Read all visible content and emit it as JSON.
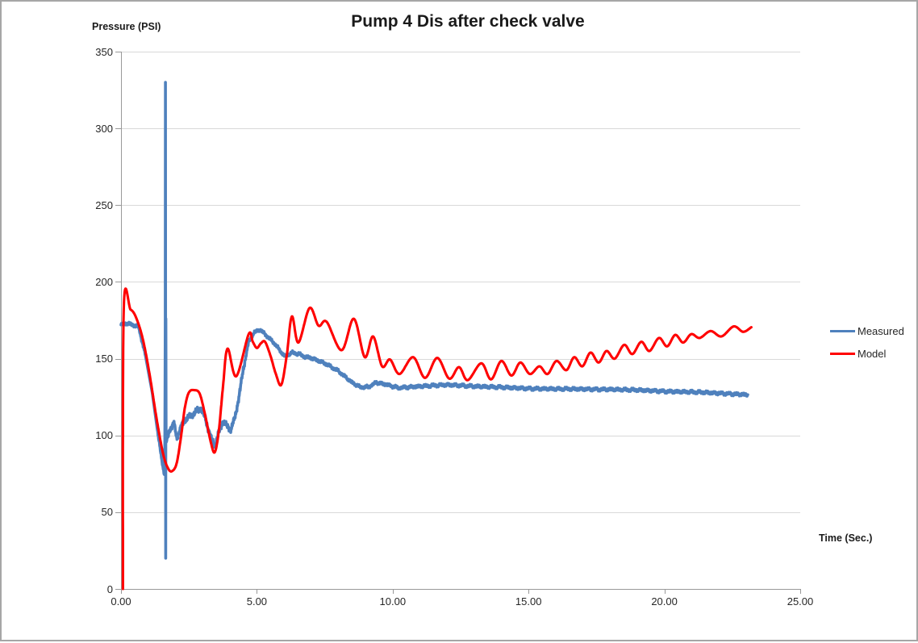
{
  "window": {
    "background": "#FFFFFF",
    "border_color": "#A6A6A6"
  },
  "colors": {
    "measured_series": "#4F81BD",
    "model_series": "#FF0000",
    "gridline": "#D9D9D9",
    "axis_line": "#999999",
    "tick_text": "#262626",
    "title_text": "#1A1A1A"
  },
  "chart_data": {
    "type": "line",
    "title": "Pump 4 Dis after check valve",
    "grid": "horizontal",
    "x_axis": {
      "title": "Time (Sec.)",
      "min": 0,
      "max": 25,
      "tick_interval": 5,
      "tick_labels": [
        "0.00",
        "5.00",
        "10.00",
        "15.00",
        "20.00",
        "25.00"
      ]
    },
    "y_axis": {
      "title": "Pressure (PSI)",
      "min": 0,
      "max": 350,
      "tick_interval": 50,
      "tick_labels": [
        "0",
        "50",
        "100",
        "150",
        "200",
        "250",
        "300",
        "350"
      ]
    },
    "legend": {
      "position": "right",
      "entries": [
        {
          "label": "Measured",
          "color": "#4F81BD"
        },
        {
          "label": "Model",
          "color": "#FF0000"
        }
      ]
    },
    "series": [
      {
        "name": "Measured",
        "color": "#4F81BD",
        "style": "noisy",
        "points": [
          [
            0,
            172
          ],
          [
            0.2,
            173
          ],
          [
            0.45,
            172
          ],
          [
            0.65,
            170.5
          ],
          [
            0.9,
            152
          ],
          [
            1.15,
            128
          ],
          [
            1.35,
            102
          ],
          [
            1.5,
            84
          ],
          [
            1.58,
            76
          ],
          [
            1.61,
            74.5
          ],
          [
            1.63,
            177
          ],
          [
            1.636,
            330
          ],
          [
            1.645,
            20
          ],
          [
            1.652,
            176
          ],
          [
            1.66,
            95
          ],
          [
            1.8,
            104
          ],
          [
            1.95,
            108
          ],
          [
            2.05,
            98
          ],
          [
            2.2,
            105
          ],
          [
            2.35,
            110
          ],
          [
            2.5,
            112
          ],
          [
            2.65,
            114
          ],
          [
            2.8,
            116
          ],
          [
            2.95,
            118
          ],
          [
            3.1,
            111
          ],
          [
            3.3,
            99
          ],
          [
            3.45,
            93
          ],
          [
            3.6,
            102
          ],
          [
            3.75,
            109
          ],
          [
            3.9,
            106
          ],
          [
            4.05,
            104
          ],
          [
            4.2,
            112
          ],
          [
            4.35,
            126
          ],
          [
            4.5,
            143
          ],
          [
            4.7,
            161
          ],
          [
            4.9,
            167
          ],
          [
            5.1,
            169
          ],
          [
            5.3,
            166
          ],
          [
            5.5,
            162.5
          ],
          [
            5.7,
            159
          ],
          [
            5.9,
            154
          ],
          [
            6.05,
            151.5
          ],
          [
            6.3,
            154
          ],
          [
            6.55,
            153
          ],
          [
            6.8,
            151
          ],
          [
            7,
            150.5
          ],
          [
            7.5,
            147
          ],
          [
            8,
            142
          ],
          [
            8.5,
            134.5
          ],
          [
            8.8,
            131.5
          ],
          [
            9.1,
            131.5
          ],
          [
            9.4,
            134.5
          ],
          [
            9.8,
            133
          ],
          [
            10.2,
            131
          ],
          [
            10.6,
            131.5
          ],
          [
            11,
            132
          ],
          [
            11.5,
            132.5
          ],
          [
            12,
            133
          ],
          [
            12.5,
            132.5
          ],
          [
            13,
            132
          ],
          [
            13.5,
            131.7
          ],
          [
            14,
            131.4
          ],
          [
            14.5,
            131
          ],
          [
            15,
            130.5
          ],
          [
            15.5,
            130.4
          ],
          [
            16,
            130.3
          ],
          [
            16.5,
            130.3
          ],
          [
            17,
            130.2
          ],
          [
            17.5,
            130
          ],
          [
            18,
            130
          ],
          [
            18.5,
            129.8
          ],
          [
            19,
            129.6
          ],
          [
            19.5,
            129.2
          ],
          [
            20,
            128.7
          ],
          [
            20.5,
            128.5
          ],
          [
            21,
            128.3
          ],
          [
            21.5,
            128
          ],
          [
            22,
            127.5
          ],
          [
            22.5,
            127
          ],
          [
            23.07,
            126.5
          ]
        ]
      },
      {
        "name": "Model",
        "color": "#FF0000",
        "style": "smooth",
        "points": [
          [
            0.07,
            0
          ],
          [
            0.1,
            182
          ],
          [
            0.35,
            182
          ],
          [
            0.55,
            177
          ],
          [
            0.8,
            163
          ],
          [
            1.05,
            140
          ],
          [
            1.3,
            112
          ],
          [
            1.55,
            88
          ],
          [
            1.75,
            78
          ],
          [
            1.9,
            77
          ],
          [
            2.05,
            82
          ],
          [
            2.2,
            98
          ],
          [
            2.35,
            118
          ],
          [
            2.5,
            128
          ],
          [
            2.7,
            129.5
          ],
          [
            2.9,
            127
          ],
          [
            3.1,
            113
          ],
          [
            3.3,
            96
          ],
          [
            3.45,
            89
          ],
          [
            3.6,
            103
          ],
          [
            3.75,
            131
          ],
          [
            3.92,
            156.5
          ],
          [
            4.24,
            138.5
          ],
          [
            4.7,
            166
          ],
          [
            4.85,
            161
          ],
          [
            5,
            157
          ],
          [
            5.15,
            160
          ],
          [
            5.3,
            161
          ],
          [
            5.5,
            152
          ],
          [
            5.7,
            140
          ],
          [
            5.9,
            133
          ],
          [
            6.1,
            152
          ],
          [
            6.29,
            177.5
          ],
          [
            6.53,
            160.5
          ],
          [
            6.94,
            183
          ],
          [
            7.27,
            171.5
          ],
          [
            7.57,
            174
          ],
          [
            8.12,
            155.5
          ],
          [
            8.57,
            176
          ],
          [
            8.97,
            151
          ],
          [
            9.28,
            164.5
          ],
          [
            9.61,
            145
          ],
          [
            9.9,
            149.5
          ],
          [
            10.25,
            140
          ],
          [
            10.75,
            151
          ],
          [
            11.19,
            137.5
          ],
          [
            11.64,
            150.5
          ],
          [
            12.08,
            137
          ],
          [
            12.44,
            144.5
          ],
          [
            12.76,
            136
          ],
          [
            13.26,
            147
          ],
          [
            13.62,
            136.5
          ],
          [
            14,
            148.5
          ],
          [
            14.37,
            139
          ],
          [
            14.7,
            147.5
          ],
          [
            15.05,
            140
          ],
          [
            15.4,
            145
          ],
          [
            15.7,
            140
          ],
          [
            16.03,
            148.5
          ],
          [
            16.39,
            142.5
          ],
          [
            16.68,
            151
          ],
          [
            16.98,
            145
          ],
          [
            17.28,
            154
          ],
          [
            17.58,
            147.5
          ],
          [
            17.87,
            155
          ],
          [
            18.17,
            150
          ],
          [
            18.52,
            159
          ],
          [
            18.82,
            153
          ],
          [
            19.15,
            161
          ],
          [
            19.45,
            155
          ],
          [
            19.8,
            163.5
          ],
          [
            20.1,
            158
          ],
          [
            20.4,
            165.5
          ],
          [
            20.69,
            160.5
          ],
          [
            20.99,
            166
          ],
          [
            21.3,
            163.5
          ],
          [
            21.7,
            168
          ],
          [
            22.1,
            164.5
          ],
          [
            22.55,
            171
          ],
          [
            22.9,
            167.5
          ],
          [
            23.2,
            170.5
          ]
        ]
      }
    ]
  }
}
